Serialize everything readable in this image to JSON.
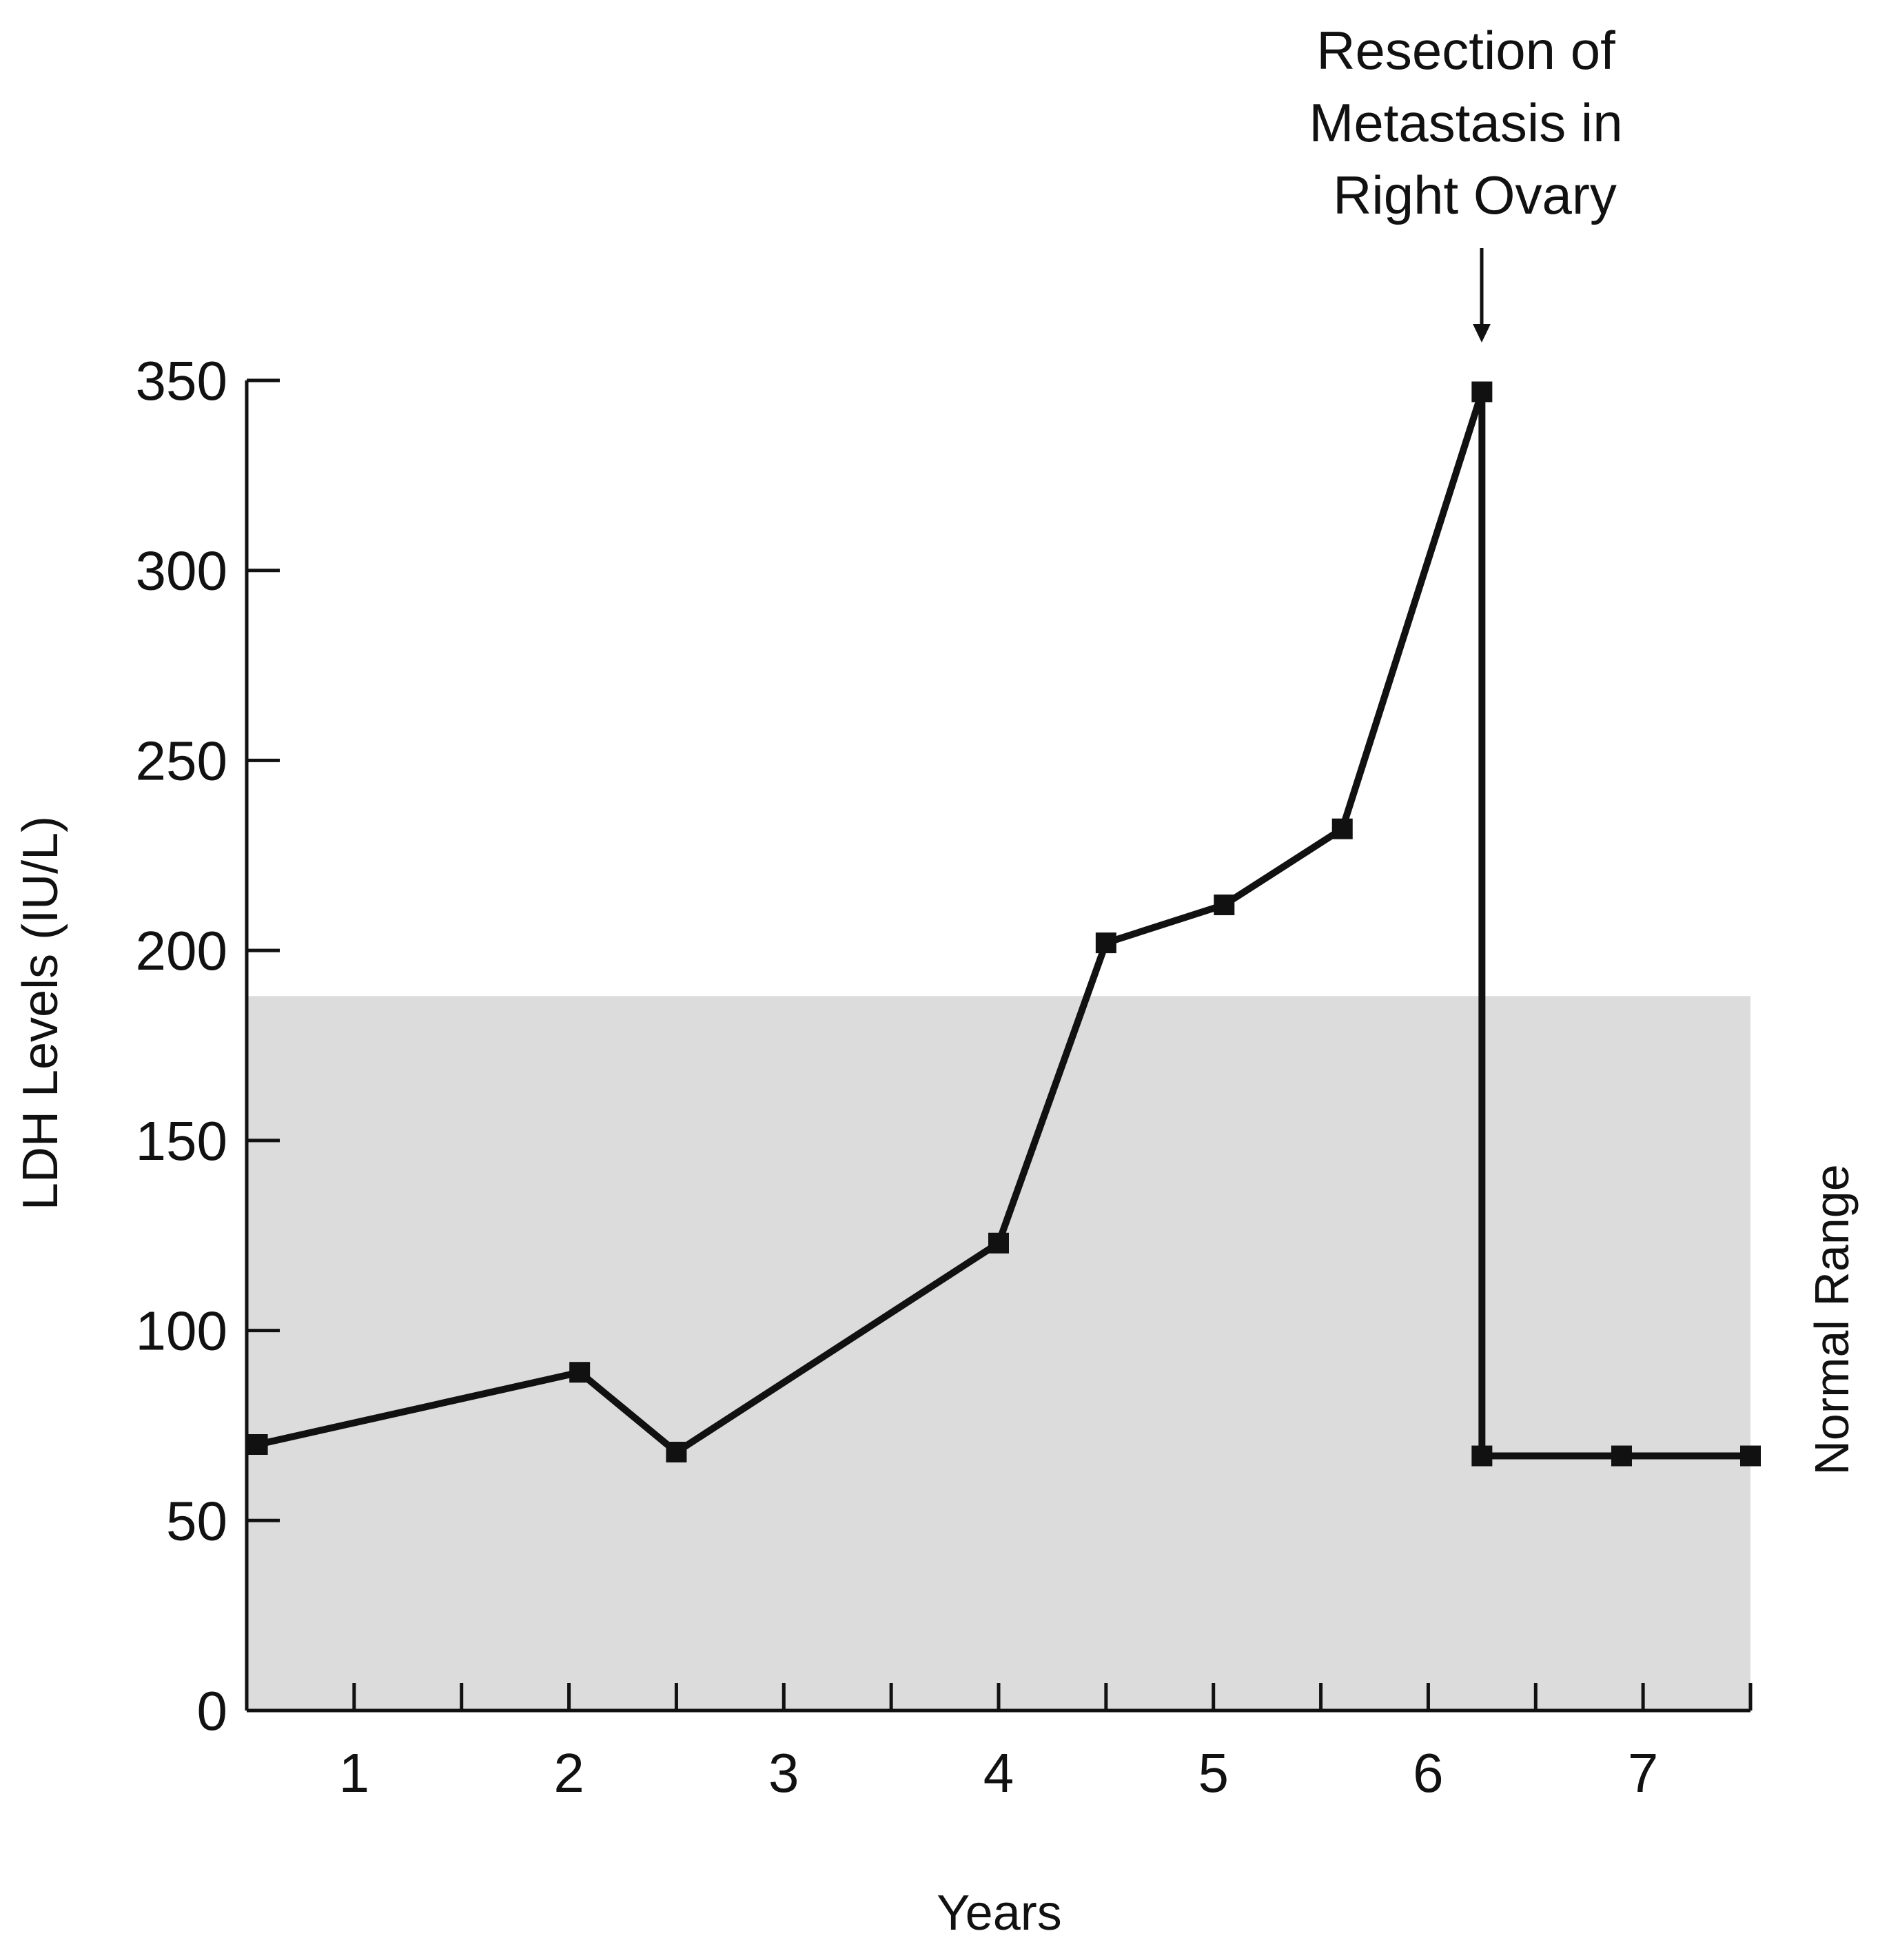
{
  "chart_data": {
    "type": "line",
    "title": "",
    "xlabel": "Years",
    "ylabel": "LDH Levels (IU/L)",
    "xlim": [
      0.5,
      7.5
    ],
    "ylim": [
      0,
      350
    ],
    "x_ticks": [
      1,
      2,
      3,
      4,
      5,
      6,
      7
    ],
    "x_tick_labels": [
      "1",
      "2",
      "3",
      "4",
      "5",
      "6",
      "7"
    ],
    "x_minor_ticks": [
      1,
      1.5,
      2,
      2.5,
      3,
      3.5,
      4,
      4.5,
      5,
      5.5,
      6,
      6.5,
      7,
      7.5
    ],
    "y_ticks": [
      0,
      50,
      100,
      150,
      200,
      250,
      300,
      350
    ],
    "y_tick_labels": [
      "0",
      "50",
      "100",
      "150",
      "200",
      "250",
      "300",
      "350"
    ],
    "grid": false,
    "series": [
      {
        "name": "LDH",
        "marker": "square",
        "color": "#111111",
        "points": [
          {
            "x": 0.55,
            "y": 70
          },
          {
            "x": 2.05,
            "y": 89
          },
          {
            "x": 2.5,
            "y": 68
          },
          {
            "x": 4.0,
            "y": 123
          },
          {
            "x": 4.5,
            "y": 202
          },
          {
            "x": 5.05,
            "y": 212
          },
          {
            "x": 5.6,
            "y": 232
          },
          {
            "x": 6.25,
            "y": 347
          },
          {
            "x": 6.25,
            "y": 67
          },
          {
            "x": 6.9,
            "y": 67
          },
          {
            "x": 7.5,
            "y": 67
          }
        ]
      }
    ],
    "shaded_band": {
      "label": "Normal Range",
      "y_from": 0,
      "y_to": 188,
      "color": "#dcdcdc"
    },
    "annotations": [
      {
        "lines": [
          "Resection of",
          "Metastasis in",
          "Right Ovary"
        ],
        "x": 6.25,
        "y": 347,
        "arrow": true
      }
    ],
    "colors": {
      "line": "#111111",
      "band": "#dcdcdc",
      "axis": "#111111",
      "background": "#ffffff"
    }
  }
}
